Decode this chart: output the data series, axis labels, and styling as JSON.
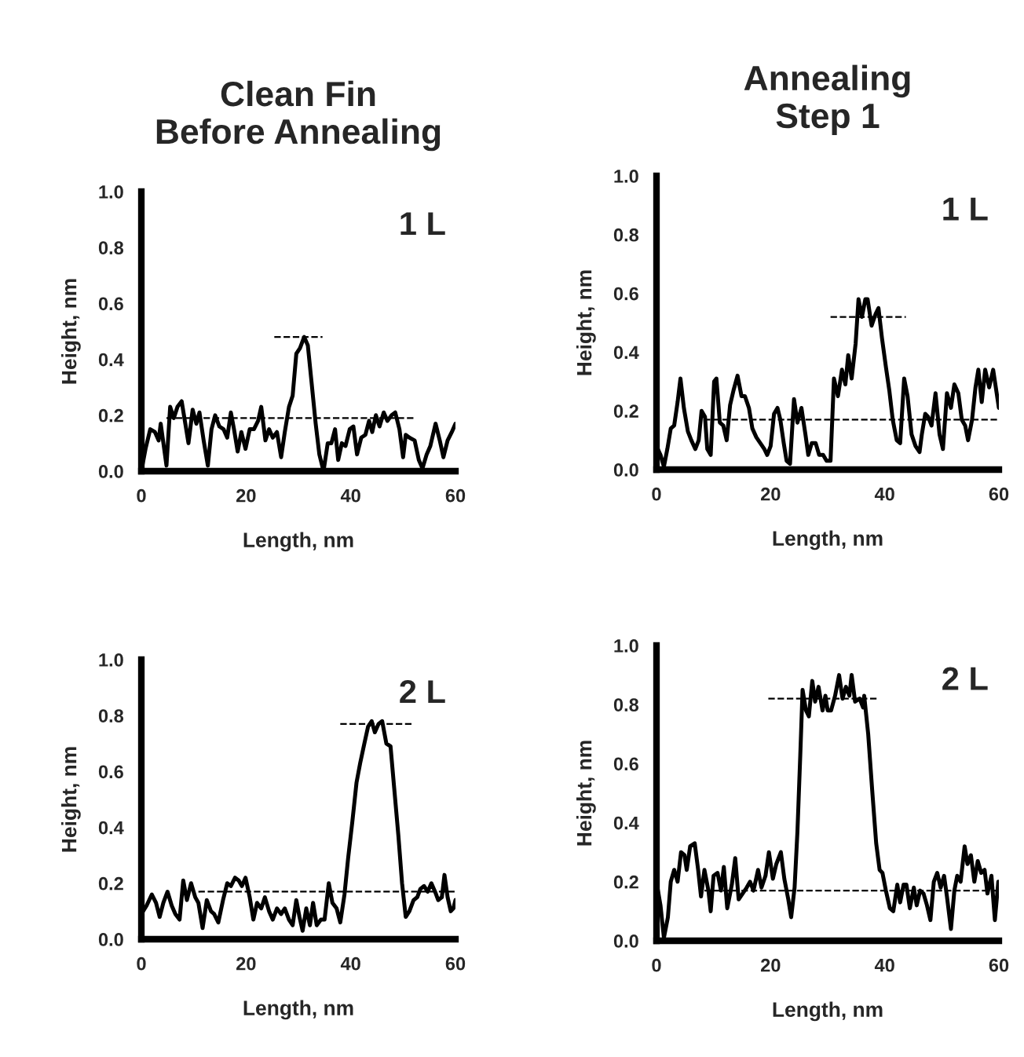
{
  "chart_data": [
    {
      "type": "line",
      "title": "Clean Fin\nBefore Annealing",
      "xlabel": "Length, nm",
      "ylabel": "Height, nm",
      "xlim": [
        0,
        60
      ],
      "ylim": [
        0,
        1.0
      ],
      "xticks": [
        0,
        20,
        40,
        60
      ],
      "yticks": [
        {
          "value": 0,
          "label": "0.0"
        },
        {
          "value": 0.2,
          "label": "0.2"
        },
        {
          "value": 0.4,
          "label": "0.4"
        },
        {
          "value": 0.6,
          "label": "0.6"
        },
        {
          "value": 0.8,
          "label": "0.8"
        },
        {
          "value": 1.0,
          "label": "1.0"
        }
      ],
      "annotations": [
        "1 L"
      ],
      "grid": false,
      "legend": false,
      "marker": "none",
      "series": [
        {
          "color": "#000000",
          "line_style": "solid",
          "x": [
            0,
            0.8,
            1.7,
            2.6,
            3.3,
            3.7,
            4.8,
            5.5,
            6.2,
            6.9,
            7.7,
            8.4,
            9,
            9.8,
            10.5,
            11.1,
            11.9,
            12.7,
            13.4,
            14.1,
            14.9,
            15.7,
            16.4,
            17.1,
            17.7,
            18.4,
            19.1,
            19.9,
            20.7,
            21.5,
            22.3,
            22.9,
            23.7,
            24.4,
            25.1,
            25.9,
            26.7,
            27.4,
            28.2,
            28.9,
            29.6,
            30.3,
            31.1,
            31.8,
            32.5,
            33.3,
            34,
            34.8,
            35.6,
            36.3,
            37,
            37.6,
            38.3,
            39,
            39.8,
            40.5,
            41.2,
            42,
            42.8,
            43.5,
            44.1,
            44.8,
            45.5,
            46.3,
            47,
            47.8,
            48.5,
            49.3,
            50,
            50.5,
            51.2,
            52.2,
            53,
            53.7,
            54.5,
            55.2,
            56.2,
            57,
            57.7,
            58.5,
            59.3,
            60
          ],
          "values": [
            0.0,
            0.08,
            0.15,
            0.14,
            0.11,
            0.17,
            0.02,
            0.23,
            0.19,
            0.23,
            0.25,
            0.17,
            0.1,
            0.22,
            0.17,
            0.21,
            0.11,
            0.02,
            0.15,
            0.2,
            0.16,
            0.15,
            0.12,
            0.21,
            0.15,
            0.07,
            0.14,
            0.08,
            0.15,
            0.15,
            0.18,
            0.23,
            0.11,
            0.15,
            0.12,
            0.14,
            0.05,
            0.14,
            0.23,
            0.27,
            0.42,
            0.44,
            0.48,
            0.45,
            0.32,
            0.17,
            0.06,
            0.0,
            0.1,
            0.1,
            0.15,
            0.04,
            0.1,
            0.09,
            0.15,
            0.16,
            0.06,
            0.12,
            0.13,
            0.18,
            0.14,
            0.2,
            0.16,
            0.21,
            0.18,
            0.2,
            0.21,
            0.15,
            0.05,
            0.13,
            0.12,
            0.11,
            0.04,
            0.01,
            0.06,
            0.09,
            0.17,
            0.11,
            0.05,
            0.11,
            0.14,
            0.17
          ]
        },
        {
          "type": "line",
          "color": "#000000",
          "line_style": "dashed",
          "x": [
            25.4,
            34.6
          ],
          "values": [
            0.48,
            0.48
          ]
        },
        {
          "type": "line",
          "color": "#000000",
          "line_style": "dashed",
          "x": [
            4.8,
            52.4
          ],
          "values": [
            0.19,
            0.19
          ]
        }
      ]
    },
    {
      "type": "line",
      "title": "Annealing\nStep 1",
      "xlabel": "Length, nm",
      "ylabel": "Height, nm",
      "xlim": [
        0,
        60
      ],
      "ylim": [
        0,
        1.0
      ],
      "xticks": [
        0,
        20,
        40,
        60
      ],
      "yticks": [
        {
          "value": 0,
          "label": "0.0"
        },
        {
          "value": 0.2,
          "label": "0.2"
        },
        {
          "value": 0.4,
          "label": "0.4"
        },
        {
          "value": 0.6,
          "label": "0.6"
        },
        {
          "value": 0.8,
          "label": "0.8"
        },
        {
          "value": 1.0,
          "label": "1.0"
        }
      ],
      "annotations": [
        "1 L"
      ],
      "grid": false,
      "legend": false,
      "marker": "none",
      "series": [
        {
          "color": "#000000",
          "line_style": "solid",
          "x": [
            0,
            0.7,
            1.3,
            1.9,
            2.5,
            3.1,
            3.7,
            4.2,
            4.8,
            5.5,
            6.1,
            6.8,
            7.4,
            7.9,
            8.5,
            8.9,
            9.5,
            10.1,
            10.5,
            11.1,
            11.7,
            12.3,
            12.9,
            13.5,
            14.2,
            14.9,
            15.5,
            16.2,
            16.8,
            17.5,
            18.2,
            18.9,
            19.4,
            20,
            20.6,
            21.2,
            21.7,
            22.3,
            22.8,
            23.4,
            24.1,
            24.7,
            25.4,
            26.1,
            26.6,
            27.2,
            27.9,
            28.5,
            29.2,
            29.8,
            30.5,
            31.1,
            31.8,
            32.5,
            33.1,
            33.6,
            34.2,
            34.9,
            35.4,
            36,
            36.6,
            37,
            37.7,
            38.4,
            38.9,
            39.5,
            40.2,
            40.8,
            41.4,
            42.1,
            42.7,
            43.4,
            44,
            44.7,
            45.4,
            46.1,
            46.5,
            47.1,
            47.6,
            48.2,
            48.9,
            49.6,
            50.2,
            50.9,
            51.6,
            52.2,
            52.9,
            53.5,
            54.1,
            54.6,
            55.3,
            55.9,
            56.4,
            57,
            57.6,
            58.3,
            59,
            60
          ],
          "values": [
            0.08,
            0.05,
            0.01,
            0.07,
            0.14,
            0.15,
            0.23,
            0.31,
            0.21,
            0.13,
            0.1,
            0.07,
            0.1,
            0.2,
            0.18,
            0.07,
            0.05,
            0.3,
            0.31,
            0.16,
            0.15,
            0.1,
            0.22,
            0.27,
            0.32,
            0.25,
            0.25,
            0.21,
            0.14,
            0.11,
            0.09,
            0.07,
            0.05,
            0.08,
            0.19,
            0.21,
            0.17,
            0.09,
            0.03,
            0.02,
            0.24,
            0.16,
            0.21,
            0.12,
            0.05,
            0.09,
            0.09,
            0.05,
            0.05,
            0.03,
            0.03,
            0.31,
            0.25,
            0.34,
            0.29,
            0.39,
            0.31,
            0.43,
            0.58,
            0.52,
            0.58,
            0.58,
            0.49,
            0.53,
            0.55,
            0.45,
            0.35,
            0.27,
            0.17,
            0.1,
            0.09,
            0.31,
            0.25,
            0.12,
            0.08,
            0.06,
            0.12,
            0.19,
            0.18,
            0.15,
            0.26,
            0.12,
            0.07,
            0.26,
            0.21,
            0.29,
            0.26,
            0.17,
            0.15,
            0.1,
            0.17,
            0.28,
            0.34,
            0.23,
            0.34,
            0.28,
            0.34,
            0.21
          ]
        },
        {
          "type": "line",
          "color": "#000000",
          "line_style": "dashed",
          "x": [
            30.5,
            43.7
          ],
          "values": [
            0.52,
            0.52
          ]
        },
        {
          "type": "line",
          "color": "#000000",
          "line_style": "dashed",
          "x": [
            8.3,
            60
          ],
          "values": [
            0.17,
            0.17
          ]
        }
      ]
    },
    {
      "type": "line",
      "xlabel": "Length, nm",
      "ylabel": "Height, nm",
      "xlim": [
        0,
        60
      ],
      "ylim": [
        0,
        1.0
      ],
      "xticks": [
        0,
        20,
        40,
        60
      ],
      "yticks": [
        {
          "value": 0,
          "label": "0.0"
        },
        {
          "value": 0.2,
          "label": "0.2"
        },
        {
          "value": 0.4,
          "label": "0.4"
        },
        {
          "value": 0.6,
          "label": "0.6"
        },
        {
          "value": 0.8,
          "label": "0.8"
        },
        {
          "value": 1.0,
          "label": "1.0"
        }
      ],
      "annotations": [
        "2 L"
      ],
      "grid": false,
      "legend": false,
      "marker": "none",
      "series": [
        {
          "color": "#000000",
          "line_style": "solid",
          "x": [
            0,
            1,
            2,
            2.8,
            3.5,
            4.2,
            5,
            5.8,
            6.5,
            7.3,
            8,
            8.7,
            9.5,
            10.3,
            10.9,
            11.7,
            12.5,
            13.3,
            13.9,
            14.7,
            15.6,
            16.4,
            17.1,
            17.9,
            18.6,
            19.2,
            19.9,
            20.7,
            21.4,
            22.1,
            22.9,
            23.6,
            24.4,
            25.1,
            25.9,
            26.7,
            27.4,
            28.2,
            28.9,
            29.6,
            30.2,
            30.8,
            31.5,
            32.2,
            32.8,
            33.5,
            34.3,
            35,
            35.8,
            36.5,
            37.3,
            38,
            38.8,
            39.5,
            40.3,
            41.1,
            41.8,
            42.6,
            43.3,
            44,
            44.6,
            45.3,
            46,
            46.8,
            47.6,
            48.3,
            49.1,
            49.8,
            50.5,
            51.2,
            52,
            52.7,
            53.3,
            54,
            54.7,
            55.4,
            56.1,
            56.7,
            57.4,
            57.9,
            58.5,
            59.1,
            59.6,
            60
          ],
          "values": [
            0.09,
            0.12,
            0.16,
            0.13,
            0.08,
            0.13,
            0.17,
            0.12,
            0.09,
            0.07,
            0.21,
            0.14,
            0.2,
            0.15,
            0.13,
            0.04,
            0.14,
            0.1,
            0.09,
            0.06,
            0.14,
            0.2,
            0.19,
            0.22,
            0.21,
            0.19,
            0.22,
            0.15,
            0.07,
            0.13,
            0.11,
            0.15,
            0.1,
            0.07,
            0.11,
            0.09,
            0.11,
            0.07,
            0.05,
            0.14,
            0.08,
            0.03,
            0.11,
            0.05,
            0.13,
            0.05,
            0.07,
            0.07,
            0.2,
            0.13,
            0.11,
            0.06,
            0.16,
            0.29,
            0.42,
            0.56,
            0.63,
            0.7,
            0.76,
            0.78,
            0.74,
            0.77,
            0.78,
            0.7,
            0.69,
            0.54,
            0.37,
            0.2,
            0.08,
            0.1,
            0.14,
            0.15,
            0.18,
            0.19,
            0.17,
            0.2,
            0.17,
            0.14,
            0.15,
            0.23,
            0.15,
            0.1,
            0.11,
            0.14
          ]
        },
        {
          "type": "line",
          "color": "#000000",
          "line_style": "dashed",
          "x": [
            38,
            51.7
          ],
          "values": [
            0.77,
            0.77
          ]
        },
        {
          "type": "line",
          "color": "#000000",
          "line_style": "dashed",
          "x": [
            10.9,
            60
          ],
          "values": [
            0.17,
            0.17
          ]
        }
      ]
    },
    {
      "type": "line",
      "xlabel": "Length, nm",
      "ylabel": "Height, nm",
      "xlim": [
        0,
        60
      ],
      "ylim": [
        0,
        1.0
      ],
      "xticks": [
        0,
        20,
        40,
        60
      ],
      "yticks": [
        {
          "value": 0,
          "label": "0.0"
        },
        {
          "value": 0.2,
          "label": "0.2"
        },
        {
          "value": 0.4,
          "label": "0.4"
        },
        {
          "value": 0.6,
          "label": "0.6"
        },
        {
          "value": 0.8,
          "label": "0.8"
        },
        {
          "value": 1.0,
          "label": "1.0"
        }
      ],
      "annotations": [
        "2 L"
      ],
      "grid": false,
      "legend": false,
      "marker": "none",
      "series": [
        {
          "color": "#000000",
          "line_style": "solid",
          "x": [
            0,
            0.7,
            1.3,
            2,
            2.5,
            3.1,
            3.7,
            4.3,
            4.9,
            5.3,
            5.9,
            6.7,
            7.3,
            7.8,
            8.4,
            9.1,
            9.5,
            10,
            10.7,
            11.3,
            11.8,
            12.4,
            13.2,
            13.8,
            14.4,
            15.1,
            15.8,
            16.4,
            17,
            17.8,
            18.4,
            19.1,
            19.7,
            20.4,
            21,
            21.8,
            22.4,
            23.1,
            23.6,
            24.2,
            24.7,
            25.2,
            25.6,
            26.2,
            26.7,
            27.3,
            27.8,
            28.4,
            29.1,
            29.6,
            30,
            30.6,
            31.3,
            32,
            32.6,
            33.2,
            33.8,
            34.2,
            34.8,
            35.6,
            36.2,
            36.4,
            37.1,
            37.8,
            38.5,
            39.1,
            39.6,
            40.2,
            40.9,
            41.5,
            42.2,
            42.7,
            43.3,
            43.8,
            44.4,
            45.1,
            45.6,
            46.2,
            46.8,
            47.4,
            48,
            48.6,
            49.2,
            49.8,
            50.4,
            50.9,
            51.6,
            52.2,
            52.7,
            53.3,
            54,
            54.5,
            55.1,
            55.7,
            56.3,
            56.9,
            57.5,
            58,
            58.7,
            59.3,
            59.9
          ],
          "values": [
            0.2,
            0.12,
            0.01,
            0.08,
            0.2,
            0.24,
            0.2,
            0.3,
            0.29,
            0.24,
            0.32,
            0.33,
            0.24,
            0.15,
            0.24,
            0.17,
            0.1,
            0.22,
            0.23,
            0.17,
            0.25,
            0.11,
            0.19,
            0.28,
            0.14,
            0.16,
            0.18,
            0.2,
            0.17,
            0.24,
            0.18,
            0.22,
            0.3,
            0.21,
            0.26,
            0.3,
            0.21,
            0.14,
            0.08,
            0.18,
            0.37,
            0.63,
            0.85,
            0.78,
            0.76,
            0.88,
            0.81,
            0.86,
            0.78,
            0.83,
            0.78,
            0.78,
            0.83,
            0.9,
            0.82,
            0.86,
            0.83,
            0.9,
            0.81,
            0.82,
            0.79,
            0.83,
            0.7,
            0.51,
            0.33,
            0.24,
            0.23,
            0.17,
            0.11,
            0.1,
            0.19,
            0.13,
            0.19,
            0.19,
            0.11,
            0.18,
            0.12,
            0.17,
            0.16,
            0.12,
            0.07,
            0.2,
            0.23,
            0.18,
            0.22,
            0.15,
            0.04,
            0.17,
            0.22,
            0.2,
            0.32,
            0.26,
            0.29,
            0.2,
            0.27,
            0.23,
            0.24,
            0.16,
            0.22,
            0.07,
            0.2
          ]
        },
        {
          "type": "line",
          "color": "#000000",
          "line_style": "dashed",
          "x": [
            19.6,
            38.7
          ],
          "values": [
            0.82,
            0.82
          ]
        },
        {
          "type": "line",
          "color": "#000000",
          "line_style": "dashed",
          "x": [
            8.4,
            60
          ],
          "values": [
            0.17,
            0.17
          ]
        }
      ]
    }
  ]
}
